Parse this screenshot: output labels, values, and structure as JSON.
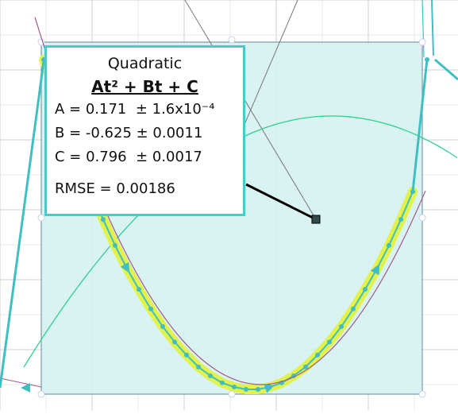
{
  "fit_box": {
    "title": "Quadratic",
    "formula": "At² + Bt + C",
    "param_a": "A = 0.171  ± 1.6x10⁻⁴",
    "param_b": "B = -0.625 ± 0.0011",
    "param_c": "C = 0.796  ± 0.0017",
    "rmse": "RMSE = 0.00186"
  },
  "colors": {
    "selection_fill": "#d2f1f1",
    "selection_border": "#7a9aa8",
    "data_points": "#3fbfc2",
    "highlight": "#e3f24a",
    "fit_curve": "#a05a8a",
    "other_curve": "#2fcf8f",
    "grid": "#d8d8d8",
    "box_border": "#4dc7c7"
  },
  "chart_data": {
    "type": "scatter",
    "title": "",
    "xlabel": "",
    "ylabel": "",
    "grid": true,
    "xlim": [
      0,
      3.5
    ],
    "ylim": [
      0,
      1.2
    ],
    "series": [
      {
        "x": [
          0.0,
          0.1,
          0.2,
          0.3,
          0.4,
          0.5,
          0.6,
          0.7,
          0.8,
          0.9,
          1.0,
          1.1,
          1.2,
          1.3,
          1.4,
          1.5,
          1.6,
          1.7,
          1.8,
          1.9,
          2.0,
          2.1,
          2.2,
          2.3,
          2.4,
          2.5,
          2.6,
          2.7,
          2.8,
          2.9,
          3.0,
          3.1
        ],
        "y": [
          0.796,
          0.737,
          0.681,
          0.628,
          0.573,
          0.526,
          0.482,
          0.443,
          0.408,
          0.375,
          0.345,
          0.319,
          0.297,
          0.277,
          0.262,
          0.25,
          0.243,
          0.239,
          0.239,
          0.243,
          0.25,
          0.262,
          0.277,
          0.297,
          0.319,
          0.345,
          0.375,
          0.408,
          0.443,
          0.482,
          0.526,
          0.573
        ]
      }
    ],
    "fit": {
      "model": "quadratic",
      "A": 0.171,
      "B": -0.625,
      "C": 0.796
    }
  }
}
